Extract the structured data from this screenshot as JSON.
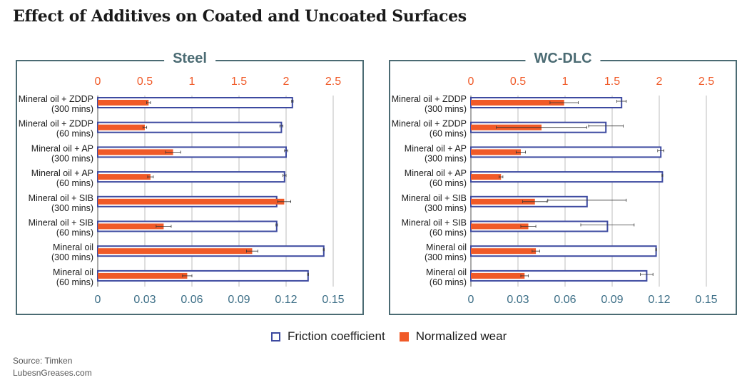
{
  "title": "Effect of Additives on Coated and Uncoated Surfaces",
  "legend": {
    "friction": "Friction coefficient",
    "wear": "Normalized wear"
  },
  "colors": {
    "friction": "#3d4aa0",
    "wear": "#f05a28",
    "panel_border": "#4b6b73",
    "top_axis": "#f05a28",
    "bottom_axis": "#3d6f87"
  },
  "footer": {
    "source": "Source: Timken",
    "site": "LubesnGreases.com"
  },
  "chart_data": [
    {
      "type": "bar",
      "title": "Steel",
      "categories": [
        [
          "Mineral oil + ZDDP",
          "(300 mins)"
        ],
        [
          "Mineral oil + ZDDP",
          "(60 mins)"
        ],
        [
          "Mineral oil + AP",
          "(300 mins)"
        ],
        [
          "Mineral oil + AP",
          "(60 mins)"
        ],
        [
          "Mineral oil + SIB",
          "(300 mins)"
        ],
        [
          "Mineral oil + SIB",
          "(60 mins)"
        ],
        [
          "Mineral oil",
          "(300 mins)"
        ],
        [
          "Mineral oil",
          "(60 mins)"
        ]
      ],
      "top_axis": {
        "ticks": [
          "0",
          "0.5",
          "1",
          "1.5",
          "2",
          "2.5"
        ],
        "range": [
          0,
          2.5
        ]
      },
      "bottom_axis": {
        "ticks": [
          "0",
          "0.03",
          "0.06",
          "0.09",
          "0.12",
          "0.15"
        ],
        "range": [
          0,
          0.15
        ]
      },
      "series": [
        {
          "name": "Friction coefficient",
          "axis": "bottom",
          "values": [
            0.124,
            0.117,
            0.12,
            0.119,
            0.114,
            0.114,
            0.144,
            0.134
          ],
          "errors": [
            0.0005,
            0.001,
            0.001,
            0.001,
            0.0005,
            0.0005,
            0.0003,
            0.0003
          ]
        },
        {
          "name": "Normalized wear",
          "axis": "top",
          "values": [
            0.54,
            0.5,
            0.8,
            0.56,
            1.98,
            0.7,
            1.64,
            0.95
          ],
          "errors": [
            0.02,
            0.02,
            0.08,
            0.03,
            0.07,
            0.08,
            0.06,
            0.05
          ]
        }
      ],
      "grid": true
    },
    {
      "type": "bar",
      "title": "WC-DLC",
      "categories": [
        [
          "Mineral oil + ZDDP",
          "(300 mins)"
        ],
        [
          "Mineral oil + ZDDP",
          "(60 mins)"
        ],
        [
          "Mineral oil + AP",
          "(300 mins)"
        ],
        [
          "Mineral oil + AP",
          "(60 mins)"
        ],
        [
          "Mineral oil + SIB",
          "(300 mins)"
        ],
        [
          "Mineral oil + SIB",
          "(60 mins)"
        ],
        [
          "Mineral oil",
          "(300 mins)"
        ],
        [
          "Mineral oil",
          "(60 mins)"
        ]
      ],
      "top_axis": {
        "ticks": [
          "0",
          "0.5",
          "1",
          "1.5",
          "2",
          "2.5"
        ],
        "range": [
          0,
          2.5
        ]
      },
      "bottom_axis": {
        "ticks": [
          "0",
          "0.03",
          "0.06",
          "0.09",
          "0.12",
          "0.15"
        ],
        "range": [
          0,
          0.15
        ]
      },
      "series": [
        {
          "name": "Friction coefficient",
          "axis": "bottom",
          "values": [
            0.096,
            0.086,
            0.121,
            0.122,
            0.074,
            0.087,
            0.118,
            0.112
          ],
          "errors": [
            0.003,
            0.011,
            0.002,
            0.0003,
            0.025,
            0.017,
            0.0003,
            0.004
          ]
        },
        {
          "name": "Normalized wear",
          "axis": "top",
          "values": [
            0.99,
            0.75,
            0.53,
            0.32,
            0.68,
            0.61,
            0.69,
            0.57
          ],
          "errors": [
            0.15,
            0.48,
            0.05,
            0.02,
            0.13,
            0.08,
            0.04,
            0.04
          ]
        }
      ],
      "grid": true
    }
  ]
}
